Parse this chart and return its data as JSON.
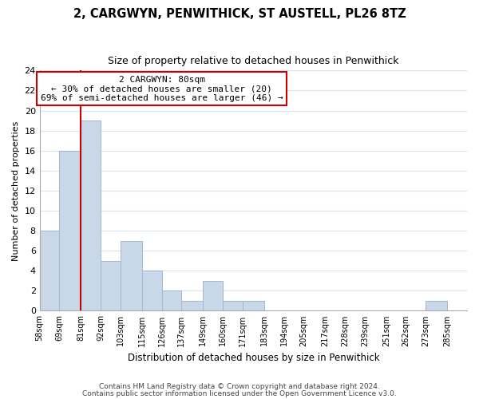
{
  "title1": "2, CARGWYN, PENWITHICK, ST AUSTELL, PL26 8TZ",
  "title2": "Size of property relative to detached houses in Penwithick",
  "xlabel": "Distribution of detached houses by size in Penwithick",
  "ylabel": "Number of detached properties",
  "bin_edges": [
    58,
    69,
    81,
    92,
    103,
    115,
    126,
    137,
    149,
    160,
    171,
    183,
    194,
    205,
    217,
    228,
    239,
    251,
    262,
    273,
    285,
    296
  ],
  "bar_heights": [
    8,
    16,
    19,
    5,
    7,
    4,
    2,
    1,
    3,
    1,
    1,
    0,
    0,
    0,
    0,
    0,
    0,
    0,
    0,
    1,
    0
  ],
  "bar_color": "#c8d8e8",
  "bar_edge_color": "#a0b8d0",
  "subject_line_x": 81,
  "subject_line_color": "#cc0000",
  "ylim": [
    0,
    24
  ],
  "yticks": [
    0,
    2,
    4,
    6,
    8,
    10,
    12,
    14,
    16,
    18,
    20,
    22,
    24
  ],
  "annotation_title": "2 CARGWYN: 80sqm",
  "annotation_line1": "← 30% of detached houses are smaller (20)",
  "annotation_line2": "69% of semi-detached houses are larger (46) →",
  "annotation_box_color": "#ffffff",
  "annotation_box_edge": "#cc0000",
  "footer1": "Contains HM Land Registry data © Crown copyright and database right 2024.",
  "footer2": "Contains public sector information licensed under the Open Government Licence v3.0.",
  "background_color": "#ffffff",
  "grid_color": "#d8e4ee",
  "tick_labels": [
    "58sqm",
    "69sqm",
    "81sqm",
    "92sqm",
    "103sqm",
    "115sqm",
    "126sqm",
    "137sqm",
    "149sqm",
    "160sqm",
    "171sqm",
    "183sqm",
    "194sqm",
    "205sqm",
    "217sqm",
    "228sqm",
    "239sqm",
    "251sqm",
    "262sqm",
    "273sqm",
    "285sqm"
  ],
  "xlim_min": 58,
  "xlim_max": 296
}
